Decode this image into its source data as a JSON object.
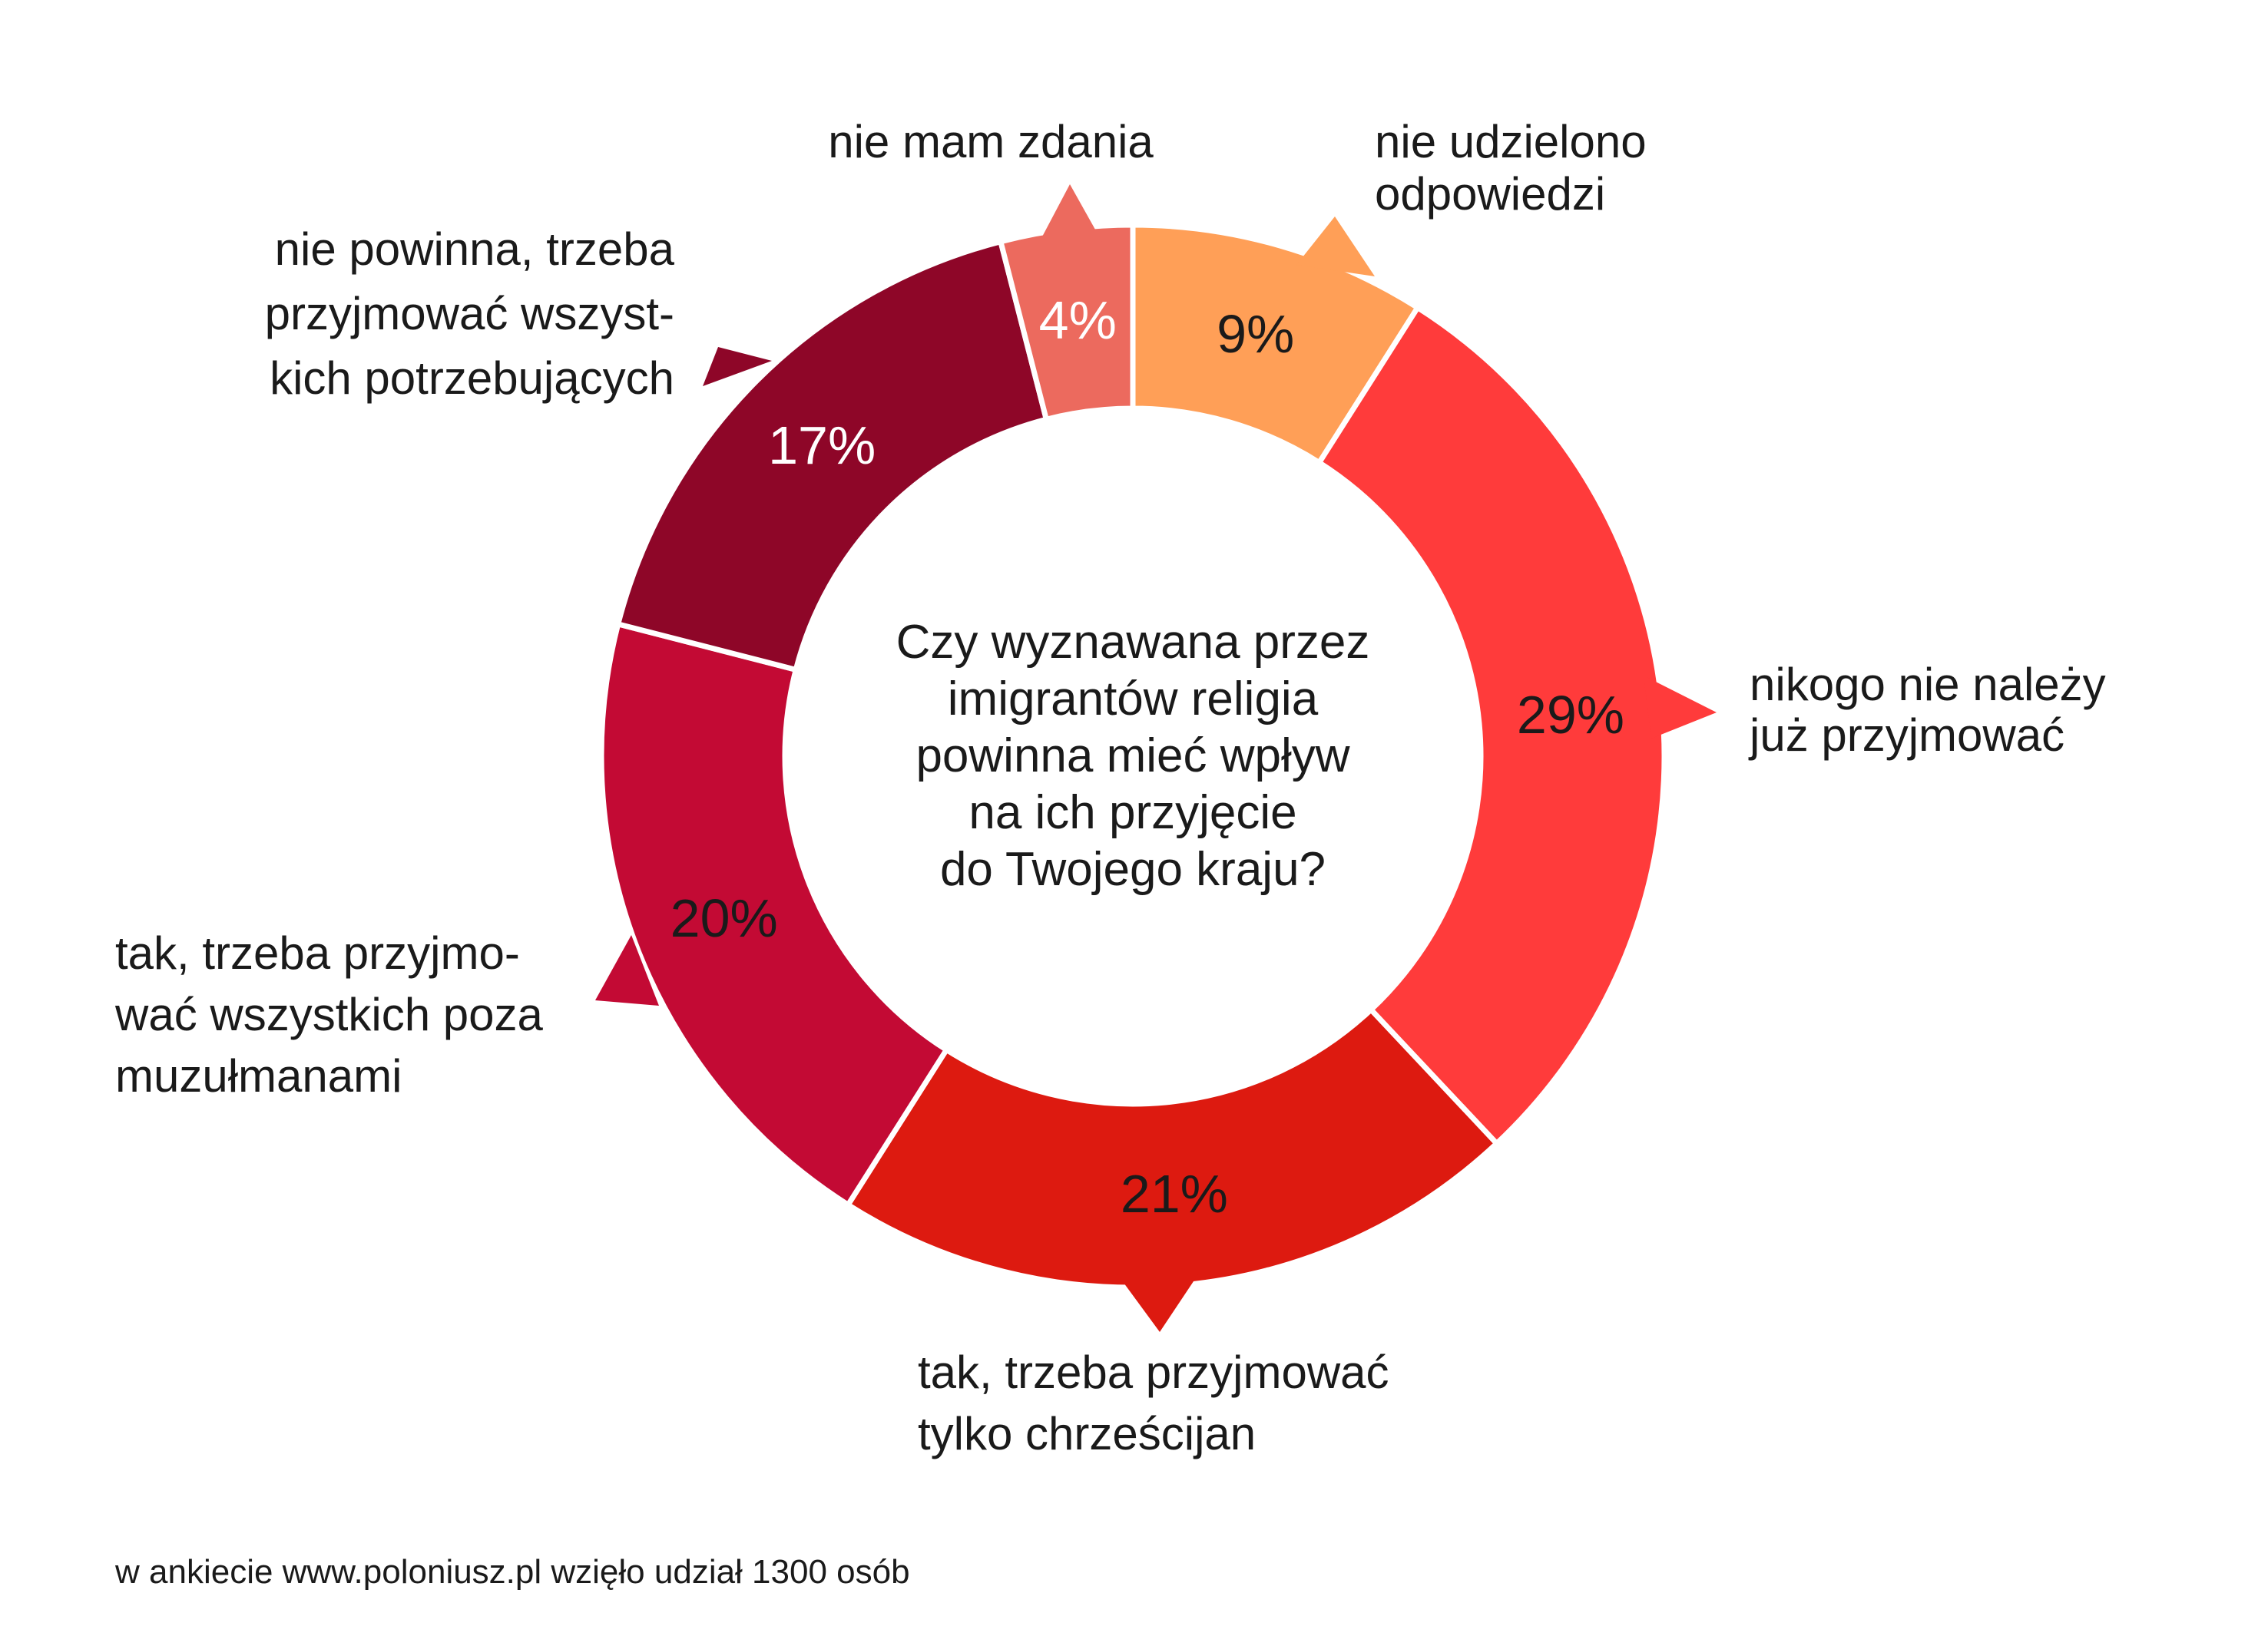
{
  "chart_data": {
    "type": "pie",
    "title": "",
    "center_question": [
      "Czy wyznawana przez",
      "imigrantów religia",
      "powinna mieć wpływ",
      "na ich przyjęcie",
      "do Twojego kraju?"
    ],
    "categories": [
      "nie udzielono odpowiedzi",
      "nikogo nie należy już przyjmować",
      "tak, trzeba przyjmować tylko chrześcijan",
      "tak, trzeba przyjmować wszystkich poza muzułmanami",
      "nie powinna, trzeba przyjmować wszystkich potrzebujących",
      "nie mam zdania"
    ],
    "values": [
      9,
      29,
      21,
      20,
      17,
      4
    ],
    "value_labels": [
      "9%",
      "29%",
      "21%",
      "20%",
      "17%",
      "4%"
    ],
    "category_lines": [
      [
        "nie udzielono",
        "odpowiedzi"
      ],
      [
        "nikogo nie należy",
        "już przyjmować"
      ],
      [
        "tak, trzeba przyjmować",
        "tylko chrześcijan"
      ],
      [
        "tak, trzeba przyjmo-",
        "wać wszystkich poza",
        "muzułmanami"
      ],
      [
        "nie powinna, trzeba",
        "przyjmować wszyst-",
        "kich potrzebujących"
      ],
      [
        "nie mam zdania"
      ]
    ],
    "colors": [
      "#FF9F57",
      "#FF3B3B",
      "#DD1A10",
      "#C30A34",
      "#8E0628",
      "#EC6A5E"
    ],
    "value_label_colors": [
      "#1a1a1a",
      "#1a1a1a",
      "#1a1a1a",
      "#1a1a1a",
      "#ffffff",
      "#ffffff"
    ],
    "legend": "none",
    "grid": false
  },
  "footer": "w ankiecie www.poloniusz.pl wzięło udział 1300 osób"
}
